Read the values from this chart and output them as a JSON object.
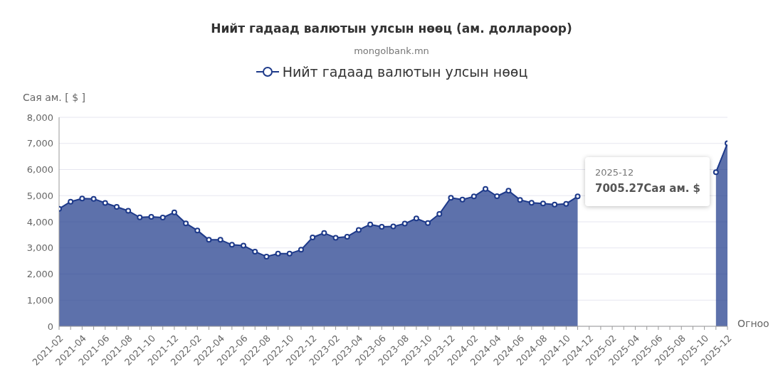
{
  "chart_data": {
    "type": "area",
    "title": "Нийт гадаад валютын улсын нөөц (ам. доллароор)",
    "subtitle": "mongolbank.mn",
    "xlabel": "Огноо",
    "ylabel": "Сая ам. [ $ ]",
    "categories": [
      "2021-02",
      null,
      "2021-04",
      null,
      "2021-06",
      null,
      "2021-08",
      null,
      "2021-10",
      null,
      "2021-12",
      null,
      "2022-02",
      null,
      "2022-04",
      null,
      "2022-06",
      null,
      "2022-08",
      null,
      "2022-10",
      null,
      "2022-12",
      null,
      "2023-02",
      null,
      "2023-04",
      null,
      "2023-06",
      null,
      "2023-08",
      null,
      "2023-10",
      null,
      "2023-12",
      null,
      "2024-02",
      null,
      "2024-04",
      null,
      "2024-06",
      null,
      "2024-08",
      null,
      "2024-10",
      null,
      "2024-12",
      null,
      "2025-02",
      null,
      "2025-04",
      null,
      "2025-06",
      null,
      "2025-08",
      null,
      "2025-10",
      null,
      "2025-12"
    ],
    "series": [
      {
        "name": "Нийт гадаад валютын улсын нөөц",
        "color": "#1e3a8a",
        "values": [
          4500,
          4770,
          4890,
          4880,
          4720,
          4570,
          4420,
          4170,
          4190,
          4160,
          4360,
          3940,
          3670,
          3310,
          3310,
          3120,
          3090,
          2860,
          2670,
          2780,
          2780,
          2930,
          3400,
          3570,
          3390,
          3430,
          3690,
          3900,
          3810,
          3820,
          3930,
          4130,
          3950,
          4300,
          4920,
          4850,
          4970,
          5260,
          4980,
          5190,
          4840,
          4730,
          4700,
          4660,
          4690,
          4970,
          null,
          null,
          null,
          null,
          null,
          null,
          null,
          null,
          null,
          null,
          null,
          5900,
          7005.27
        ]
      }
    ],
    "ylim": [
      0,
      8000
    ],
    "yticks": [
      {
        "value": 0,
        "label": "0"
      },
      {
        "value": 1000,
        "label": "1,000"
      },
      {
        "value": 2000,
        "label": "2,000"
      },
      {
        "value": 3000,
        "label": "3,000"
      },
      {
        "value": 4000,
        "label": "4,000"
      },
      {
        "value": 5000,
        "label": "5,000"
      },
      {
        "value": 6000,
        "label": "6,000"
      },
      {
        "value": 7000,
        "label": "7,000"
      },
      {
        "value": 8000,
        "label": "8,000"
      }
    ],
    "grid": "y",
    "legend": "top",
    "marker": "circle",
    "line_style": "solid",
    "annotations": [
      "2025-12",
      "7005.27Сая ам. $"
    ]
  }
}
